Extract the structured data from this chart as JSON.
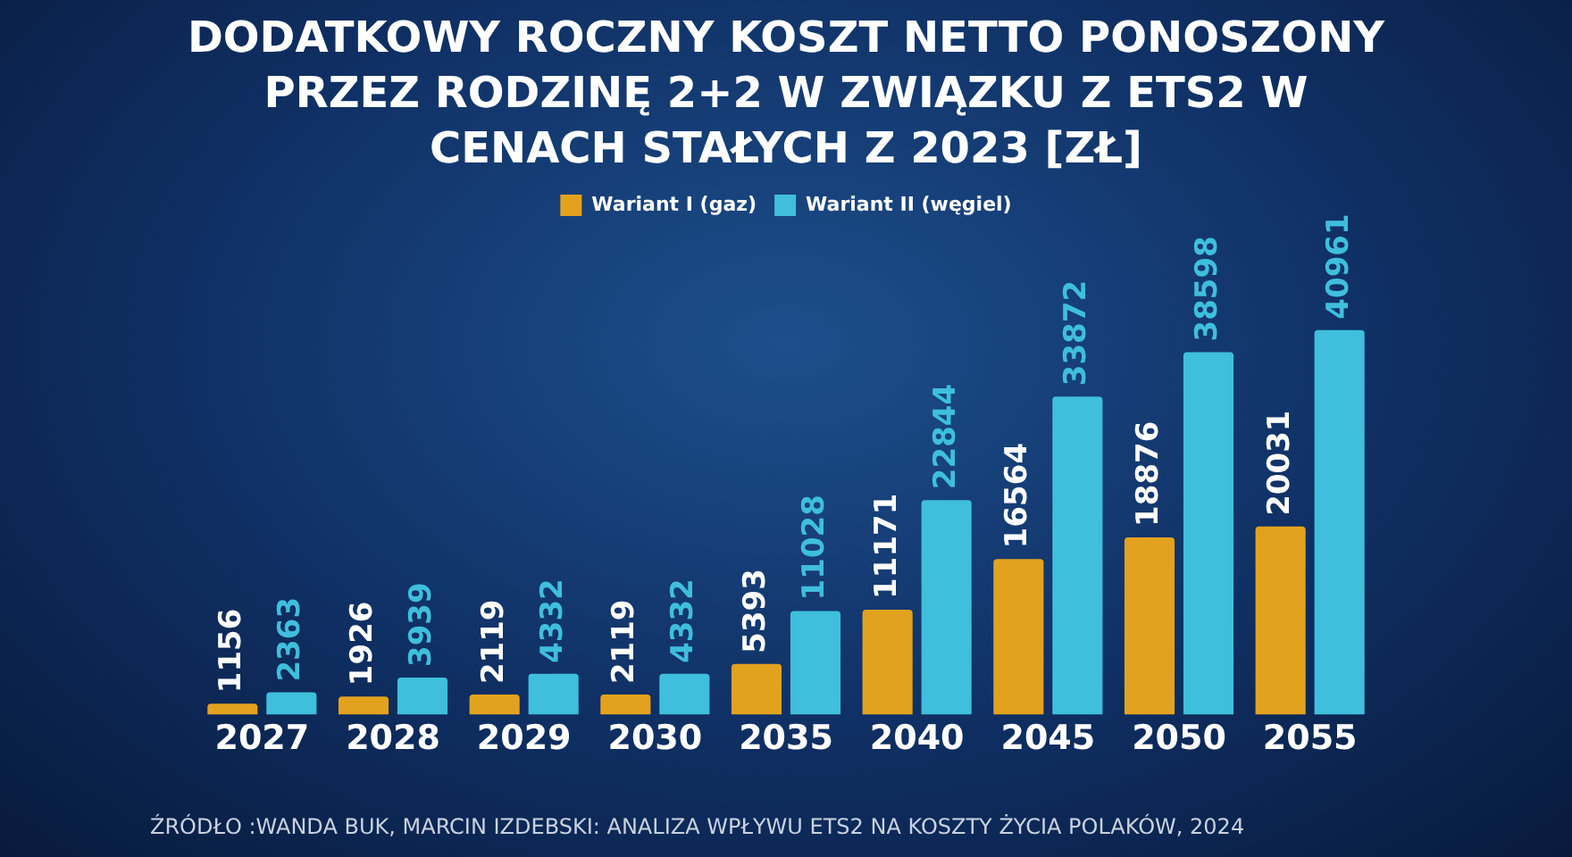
{
  "chart_data": {
    "type": "bar",
    "title": "DODATKOWY ROCZNY KOSZT NETTO PONOSZONY PRZEZ RODZINĘ 2+2 W ZWIĄZKU Z ETS2 W CENACH STAŁYCH Z 2023 [ZŁ]",
    "categories": [
      "2027",
      "2028",
      "2029",
      "2030",
      "2035",
      "2040",
      "2045",
      "2050",
      "2055"
    ],
    "series": [
      {
        "name": "Wariant I (gaz)",
        "color": "#e3a21e",
        "values": [
          1156,
          1926,
          2119,
          2119,
          5393,
          11171,
          16564,
          18876,
          20031
        ]
      },
      {
        "name": "Wariant II (węgiel)",
        "color": "#3fbfdc",
        "values": [
          2363,
          3939,
          4332,
          4332,
          11028,
          22844,
          33872,
          38598,
          40961
        ]
      }
    ],
    "data_labels": true,
    "legend": "top",
    "grid": false,
    "annotations": [
      "ŹRÓDŁO :WANDA BUK, MARCIN IZDEBSKI: ANALIZA WPŁYWU ETS2 NA KOSZTY ŻYCIA POLAKÓW, 2024"
    ]
  }
}
